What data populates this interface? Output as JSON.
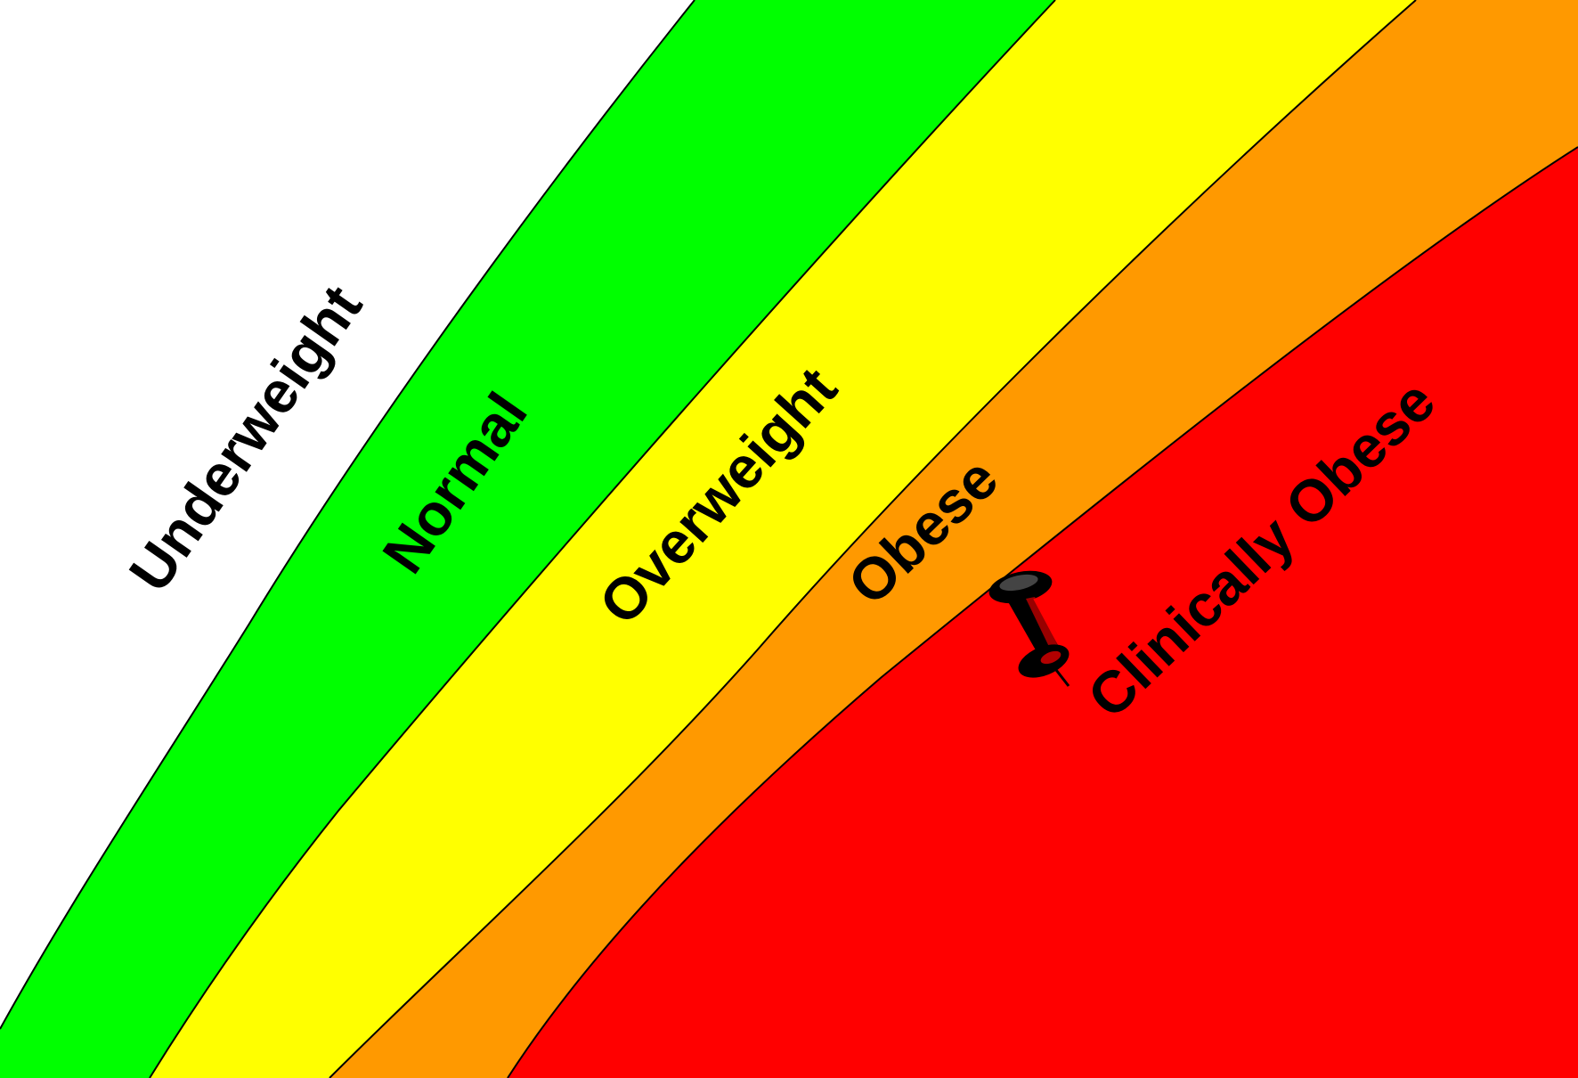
{
  "diagram": {
    "zones": [
      {
        "id": "underweight",
        "label": "Underweight",
        "color": "#ffffff"
      },
      {
        "id": "normal",
        "label": "Normal",
        "color": "#00ff00"
      },
      {
        "id": "overweight",
        "label": "Overweight",
        "color": "#ffff00"
      },
      {
        "id": "obese",
        "label": "Obese",
        "color": "#ff9900"
      },
      {
        "id": "clinically-obese",
        "label": "Clinically Obese",
        "color": "#ff0000"
      }
    ],
    "marker": {
      "icon": "pushpin-icon",
      "color": "#000000",
      "zone": "clinically-obese"
    }
  }
}
